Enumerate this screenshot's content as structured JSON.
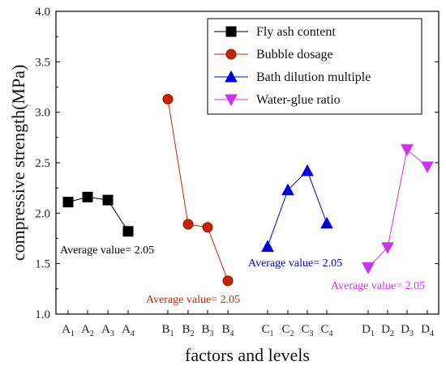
{
  "chart_data": {
    "type": "line",
    "xlabel": "factors and levels",
    "ylabel": "compressive strength(MPa)",
    "ylim": [
      1.0,
      4.0
    ],
    "yticks": [
      "1.0",
      "1.5",
      "2.0",
      "2.5",
      "3.0",
      "3.5",
      "4.0"
    ],
    "ytick_values": [
      1.0,
      1.5,
      2.0,
      2.5,
      3.0,
      3.5,
      4.0
    ],
    "grid": false,
    "legend_position": "top-right",
    "series": [
      {
        "name": "Fly ash content",
        "color": "#000000",
        "marker": "square",
        "x": [
          {
            "b": "A",
            "s": "1"
          },
          {
            "b": "A",
            "s": "2"
          },
          {
            "b": "A",
            "s": "3"
          },
          {
            "b": "A",
            "s": "4"
          }
        ],
        "values": [
          2.11,
          2.16,
          2.13,
          1.82
        ]
      },
      {
        "name": "Bubble dosage",
        "color": "#cc2200",
        "marker": "circle",
        "x": [
          {
            "b": "B",
            "s": "1"
          },
          {
            "b": "B",
            "s": "2"
          },
          {
            "b": "B",
            "s": "3"
          },
          {
            "b": "B",
            "s": "4"
          }
        ],
        "values": [
          3.13,
          1.89,
          1.86,
          1.33
        ]
      },
      {
        "name": "Bath dilution multiple",
        "color": "#0000dd",
        "marker": "triangle-up",
        "x": [
          {
            "b": "C",
            "s": "1"
          },
          {
            "b": "C",
            "s": "2"
          },
          {
            "b": "C",
            "s": "3"
          },
          {
            "b": "C",
            "s": "4"
          }
        ],
        "values": [
          1.67,
          2.23,
          2.42,
          1.9
        ]
      },
      {
        "name": "Water-glue ratio",
        "color": "#cc33ee",
        "marker": "triangle-down",
        "x": [
          {
            "b": "D",
            "s": "1"
          },
          {
            "b": "D",
            "s": "2"
          },
          {
            "b": "D",
            "s": "3"
          },
          {
            "b": "D",
            "s": "4"
          }
        ],
        "values": [
          1.46,
          1.66,
          2.63,
          2.46
        ]
      }
    ],
    "annotations": [
      {
        "text": "Average value= 2.05",
        "color": "#000000",
        "series": 0
      },
      {
        "text": "Average value= 2.05",
        "color": "#cc2200",
        "series": 1
      },
      {
        "text": "Average value= 2.05",
        "color": "#0000dd",
        "series": 2
      },
      {
        "text": "Average value= 2.05",
        "color": "#cc33ee",
        "series": 3
      }
    ]
  }
}
